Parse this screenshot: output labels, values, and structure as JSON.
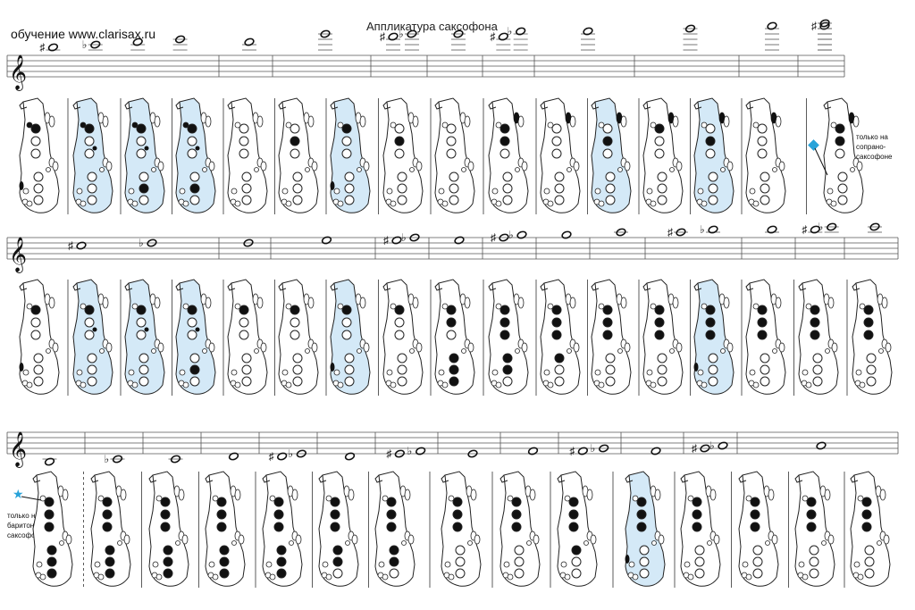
{
  "header": {
    "title": "Аппликатура саксофона",
    "site": "обучение  www.clarisax.ru"
  },
  "notes": {
    "soprano": [
      "только на",
      "сопрано-",
      "саксофоне"
    ],
    "baritone": [
      "только на",
      "баритон-",
      "саксофоне"
    ]
  },
  "colors": {
    "highlight": "#d4e9f7",
    "soprano_marker": "#29a3d9",
    "baritone_marker": "#29a3d9",
    "ink": "#111111"
  },
  "icons": {
    "soprano_marker": "diamond-icon",
    "baritone_marker": "star-icon"
  },
  "rows": [
    {
      "clef": "treble",
      "measures": [
        {
          "notes": [
            {
              "acc": "#",
              "step": 11
            },
            {
              "acc": "b",
              "step": 12
            },
            {
              "acc": "",
              "step": 13
            },
            {
              "acc": "",
              "step": 14
            }
          ]
        },
        {
          "notes": [
            {
              "acc": "",
              "step": 13
            }
          ]
        },
        {
          "notes": [
            {
              "acc": "",
              "step": 16
            }
          ]
        },
        {
          "notes": [
            {
              "acc": "#",
              "step": 15
            },
            {
              "acc": "b",
              "step": 16
            }
          ]
        },
        {
          "notes": [
            {
              "acc": "",
              "step": 16
            }
          ]
        },
        {
          "notes": [
            {
              "acc": "#",
              "step": 15
            },
            {
              "acc": "b",
              "step": 17
            }
          ]
        },
        {
          "notes": [
            {
              "acc": "",
              "step": 17
            }
          ]
        },
        {
          "notes": [
            {
              "acc": "",
              "step": 18
            }
          ]
        },
        {
          "notes": [
            {
              "acc": "",
              "step": 19
            }
          ]
        },
        {
          "notes": [
            {
              "acc": "#",
              "step": 19
            }
          ]
        },
        {
          "notes": [
            {
              "acc": "",
              "step": 20
            }
          ]
        }
      ],
      "fingerings": [
        {
          "hl": false,
          "open": [],
          "side": "low"
        },
        {
          "hl": true,
          "open": [],
          "side": "mid"
        },
        {
          "hl": true,
          "open": [],
          "side": "mid"
        },
        {
          "hl": true,
          "open": [],
          "side": "mid"
        },
        {
          "hl": false,
          "open": [],
          "side": "none"
        },
        {
          "hl": false,
          "open": [],
          "side": "none"
        },
        {
          "hl": true,
          "open": [],
          "side": "low"
        },
        {
          "hl": false,
          "open": [],
          "side": "none"
        },
        {
          "hl": false,
          "open": [],
          "side": "none"
        },
        {
          "hl": false,
          "open": [],
          "side": "top"
        },
        {
          "hl": false,
          "open": [],
          "side": "top"
        },
        {
          "hl": true,
          "open": [],
          "side": "top"
        },
        {
          "hl": false,
          "open": [],
          "side": "top"
        },
        {
          "hl": true,
          "open": [],
          "side": "top"
        },
        {
          "hl": false,
          "open": [],
          "side": "top"
        },
        {
          "hl": false,
          "open": [],
          "side": "top"
        }
      ]
    },
    {
      "clef": "treble",
      "measures": [
        {
          "notes": [
            {
              "acc": "#",
              "step": 5
            },
            {
              "acc": "b",
              "step": 6
            }
          ]
        },
        {
          "notes": [
            {
              "acc": "",
              "step": 6
            }
          ]
        },
        {
          "notes": [
            {
              "acc": "",
              "step": 7
            }
          ]
        },
        {
          "notes": [
            {
              "acc": "#",
              "step": 7
            },
            {
              "acc": "b",
              "step": 8
            }
          ]
        },
        {
          "notes": [
            {
              "acc": "",
              "step": 7
            }
          ]
        },
        {
          "notes": [
            {
              "acc": "#",
              "step": 8
            },
            {
              "acc": "b",
              "step": 9
            }
          ]
        },
        {
          "notes": [
            {
              "acc": "",
              "step": 9
            }
          ]
        },
        {
          "notes": [
            {
              "acc": "",
              "step": 10
            }
          ]
        },
        {
          "notes": [
            {
              "acc": "#",
              "step": 10
            },
            {
              "acc": "b",
              "step": 11
            }
          ]
        },
        {
          "notes": [
            {
              "acc": "",
              "step": 11
            }
          ]
        },
        {
          "notes": [
            {
              "acc": "#",
              "step": 11
            },
            {
              "acc": "b",
              "step": 12
            }
          ]
        },
        {
          "notes": [
            {
              "acc": "",
              "step": 12
            }
          ]
        }
      ],
      "fingerings": [
        {
          "hl": false,
          "side": "low"
        },
        {
          "hl": true,
          "side": "mid"
        },
        {
          "hl": true,
          "side": "mid"
        },
        {
          "hl": true,
          "side": "mid"
        },
        {
          "hl": false,
          "side": "none"
        },
        {
          "hl": false,
          "side": "none"
        },
        {
          "hl": true,
          "side": "low"
        },
        {
          "hl": false,
          "side": "none"
        },
        {
          "hl": false,
          "side": "none"
        },
        {
          "hl": false,
          "side": "none"
        },
        {
          "hl": false,
          "side": "none"
        },
        {
          "hl": false,
          "side": "none"
        },
        {
          "hl": false,
          "side": "none"
        },
        {
          "hl": true,
          "side": "low"
        },
        {
          "hl": false,
          "side": "none"
        },
        {
          "hl": false,
          "side": "none"
        },
        {
          "hl": false,
          "side": "none"
        }
      ]
    },
    {
      "clef": "treble",
      "measures": [
        {
          "notes": [
            {
              "acc": "",
              "step": -3
            }
          ]
        },
        {
          "notes": [
            {
              "acc": "b",
              "step": -2
            }
          ]
        },
        {
          "notes": [
            {
              "acc": "",
              "step": -2
            }
          ]
        },
        {
          "notes": [
            {
              "acc": "",
              "step": -1
            }
          ]
        },
        {
          "notes": [
            {
              "acc": "#",
              "step": -1
            },
            {
              "acc": "b",
              "step": 0
            }
          ]
        },
        {
          "notes": [
            {
              "acc": "",
              "step": -1
            }
          ]
        },
        {
          "notes": [
            {
              "acc": "#",
              "step": 0
            },
            {
              "acc": "b",
              "step": 1
            }
          ]
        },
        {
          "notes": [
            {
              "acc": "",
              "step": 0
            }
          ]
        },
        {
          "notes": [
            {
              "acc": "",
              "step": 1
            }
          ]
        },
        {
          "notes": [
            {
              "acc": "#",
              "step": 1
            },
            {
              "acc": "b",
              "step": 2
            }
          ]
        },
        {
          "notes": [
            {
              "acc": "",
              "step": 1
            }
          ]
        },
        {
          "notes": [
            {
              "acc": "#",
              "step": 2
            },
            {
              "acc": "b",
              "step": 3
            }
          ]
        },
        {
          "notes": [
            {
              "acc": "",
              "step": 3
            }
          ]
        }
      ],
      "fingerings": [
        {
          "hl": false,
          "side": "none"
        },
        {
          "hl": false,
          "side": "none"
        },
        {
          "hl": false,
          "side": "none"
        },
        {
          "hl": false,
          "side": "none"
        },
        {
          "hl": false,
          "side": "none"
        },
        {
          "hl": false,
          "side": "none"
        },
        {
          "hl": false,
          "side": "none"
        },
        {
          "hl": false,
          "side": "none"
        },
        {
          "hl": false,
          "side": "none"
        },
        {
          "hl": false,
          "side": "none"
        },
        {
          "hl": true,
          "side": "low"
        },
        {
          "hl": false,
          "side": "none"
        },
        {
          "hl": false,
          "side": "none"
        },
        {
          "hl": false,
          "side": "none"
        },
        {
          "hl": false,
          "side": "none"
        }
      ]
    }
  ]
}
